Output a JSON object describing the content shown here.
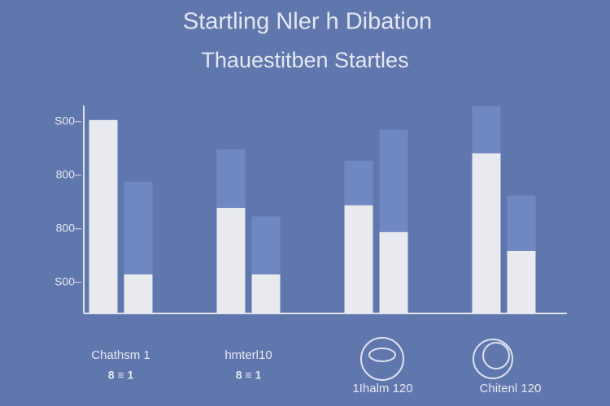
{
  "chart_data": {
    "type": "bar",
    "title": "Startling Nler h Dibation",
    "subtitle": "Thauestitben Startles",
    "categories": [
      "Chathsm 1",
      "hmterl10",
      "1Ihalm 120",
      "Chitenl 120"
    ],
    "sublabels": [
      "8 ≡ 1",
      "8 ≡ 1",
      null,
      null
    ],
    "series": [
      {
        "color": "#e9eaf0",
        "stack": "a",
        "values": [
          4.03,
          2.39,
          2.44,
          3.41
        ]
      },
      {
        "color": "#7088c2",
        "stack": "a",
        "values": [
          null,
          1.09,
          0.83,
          0.88
        ]
      },
      {
        "color": "#e9eaf0",
        "stack": "b",
        "values": [
          1.15,
          1.15,
          1.94,
          1.59
        ]
      },
      {
        "color": "#7088c2",
        "stack": "b",
        "values": [
          1.73,
          1.08,
          1.91,
          1.03
        ]
      }
    ],
    "ylim": [
      0.42,
      4.3
    ],
    "yticks": [
      {
        "value": 1,
        "label": "S00"
      },
      {
        "value": 2,
        "label": "800"
      },
      {
        "value": 3,
        "label": "800"
      },
      {
        "value": 4,
        "label": "S00"
      }
    ],
    "grid": false
  }
}
